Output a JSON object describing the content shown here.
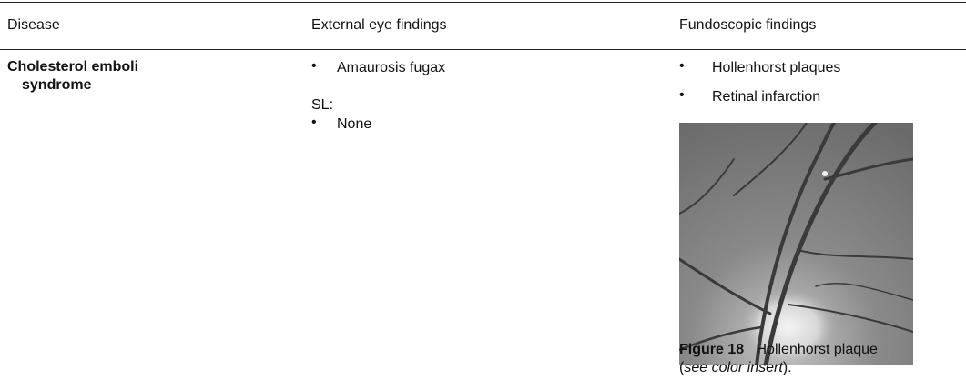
{
  "table": {
    "header": [
      "Disease",
      "External eye findings",
      "Fundoscopic findings"
    ],
    "rows": [
      {
        "disease": "Cholesterol emboli syndrome",
        "external": {
          "bullets": [
            "Amaurosis fugax"
          ],
          "sl_label": "SL:",
          "sl_bullets": [
            "None"
          ]
        },
        "fundoscopic": {
          "bullets": [
            "Hollenhorst plaques",
            "Retinal infarction"
          ],
          "figure": {
            "label": "Figure 18",
            "title": "Hollenhorst plaque",
            "note_open": "(",
            "note": "see color insert",
            "note_close": ")."
          }
        }
      }
    ]
  }
}
